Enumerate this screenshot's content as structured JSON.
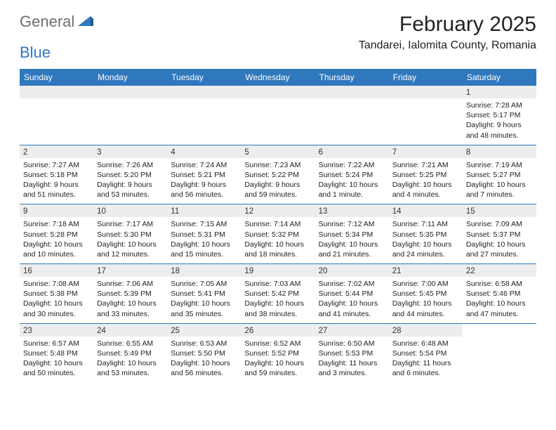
{
  "logo": {
    "word1": "General",
    "word2": "Blue"
  },
  "title": "February 2025",
  "location": "Tandarei, Ialomita County, Romania",
  "colors": {
    "header_bg": "#2f78bd",
    "header_text": "#ffffff",
    "band_bg": "#ededed",
    "divider": "#2f78bd",
    "logo_gray": "#6f6f6f",
    "logo_blue": "#2f78bd",
    "text": "#222222"
  },
  "weekdays": [
    "Sunday",
    "Monday",
    "Tuesday",
    "Wednesday",
    "Thursday",
    "Friday",
    "Saturday"
  ],
  "weeks": [
    [
      {
        "blank": true
      },
      {
        "blank": true
      },
      {
        "blank": true
      },
      {
        "blank": true
      },
      {
        "blank": true
      },
      {
        "blank": true
      },
      {
        "day": "1",
        "sunrise": "Sunrise: 7:28 AM",
        "sunset": "Sunset: 5:17 PM",
        "dl1": "Daylight: 9 hours",
        "dl2": "and 48 minutes."
      }
    ],
    [
      {
        "day": "2",
        "sunrise": "Sunrise: 7:27 AM",
        "sunset": "Sunset: 5:18 PM",
        "dl1": "Daylight: 9 hours",
        "dl2": "and 51 minutes."
      },
      {
        "day": "3",
        "sunrise": "Sunrise: 7:26 AM",
        "sunset": "Sunset: 5:20 PM",
        "dl1": "Daylight: 9 hours",
        "dl2": "and 53 minutes."
      },
      {
        "day": "4",
        "sunrise": "Sunrise: 7:24 AM",
        "sunset": "Sunset: 5:21 PM",
        "dl1": "Daylight: 9 hours",
        "dl2": "and 56 minutes."
      },
      {
        "day": "5",
        "sunrise": "Sunrise: 7:23 AM",
        "sunset": "Sunset: 5:22 PM",
        "dl1": "Daylight: 9 hours",
        "dl2": "and 59 minutes."
      },
      {
        "day": "6",
        "sunrise": "Sunrise: 7:22 AM",
        "sunset": "Sunset: 5:24 PM",
        "dl1": "Daylight: 10 hours",
        "dl2": "and 1 minute."
      },
      {
        "day": "7",
        "sunrise": "Sunrise: 7:21 AM",
        "sunset": "Sunset: 5:25 PM",
        "dl1": "Daylight: 10 hours",
        "dl2": "and 4 minutes."
      },
      {
        "day": "8",
        "sunrise": "Sunrise: 7:19 AM",
        "sunset": "Sunset: 5:27 PM",
        "dl1": "Daylight: 10 hours",
        "dl2": "and 7 minutes."
      }
    ],
    [
      {
        "day": "9",
        "sunrise": "Sunrise: 7:18 AM",
        "sunset": "Sunset: 5:28 PM",
        "dl1": "Daylight: 10 hours",
        "dl2": "and 10 minutes."
      },
      {
        "day": "10",
        "sunrise": "Sunrise: 7:17 AM",
        "sunset": "Sunset: 5:30 PM",
        "dl1": "Daylight: 10 hours",
        "dl2": "and 12 minutes."
      },
      {
        "day": "11",
        "sunrise": "Sunrise: 7:15 AM",
        "sunset": "Sunset: 5:31 PM",
        "dl1": "Daylight: 10 hours",
        "dl2": "and 15 minutes."
      },
      {
        "day": "12",
        "sunrise": "Sunrise: 7:14 AM",
        "sunset": "Sunset: 5:32 PM",
        "dl1": "Daylight: 10 hours",
        "dl2": "and 18 minutes."
      },
      {
        "day": "13",
        "sunrise": "Sunrise: 7:12 AM",
        "sunset": "Sunset: 5:34 PM",
        "dl1": "Daylight: 10 hours",
        "dl2": "and 21 minutes."
      },
      {
        "day": "14",
        "sunrise": "Sunrise: 7:11 AM",
        "sunset": "Sunset: 5:35 PM",
        "dl1": "Daylight: 10 hours",
        "dl2": "and 24 minutes."
      },
      {
        "day": "15",
        "sunrise": "Sunrise: 7:09 AM",
        "sunset": "Sunset: 5:37 PM",
        "dl1": "Daylight: 10 hours",
        "dl2": "and 27 minutes."
      }
    ],
    [
      {
        "day": "16",
        "sunrise": "Sunrise: 7:08 AM",
        "sunset": "Sunset: 5:38 PM",
        "dl1": "Daylight: 10 hours",
        "dl2": "and 30 minutes."
      },
      {
        "day": "17",
        "sunrise": "Sunrise: 7:06 AM",
        "sunset": "Sunset: 5:39 PM",
        "dl1": "Daylight: 10 hours",
        "dl2": "and 33 minutes."
      },
      {
        "day": "18",
        "sunrise": "Sunrise: 7:05 AM",
        "sunset": "Sunset: 5:41 PM",
        "dl1": "Daylight: 10 hours",
        "dl2": "and 35 minutes."
      },
      {
        "day": "19",
        "sunrise": "Sunrise: 7:03 AM",
        "sunset": "Sunset: 5:42 PM",
        "dl1": "Daylight: 10 hours",
        "dl2": "and 38 minutes."
      },
      {
        "day": "20",
        "sunrise": "Sunrise: 7:02 AM",
        "sunset": "Sunset: 5:44 PM",
        "dl1": "Daylight: 10 hours",
        "dl2": "and 41 minutes."
      },
      {
        "day": "21",
        "sunrise": "Sunrise: 7:00 AM",
        "sunset": "Sunset: 5:45 PM",
        "dl1": "Daylight: 10 hours",
        "dl2": "and 44 minutes."
      },
      {
        "day": "22",
        "sunrise": "Sunrise: 6:58 AM",
        "sunset": "Sunset: 5:46 PM",
        "dl1": "Daylight: 10 hours",
        "dl2": "and 47 minutes."
      }
    ],
    [
      {
        "day": "23",
        "sunrise": "Sunrise: 6:57 AM",
        "sunset": "Sunset: 5:48 PM",
        "dl1": "Daylight: 10 hours",
        "dl2": "and 50 minutes."
      },
      {
        "day": "24",
        "sunrise": "Sunrise: 6:55 AM",
        "sunset": "Sunset: 5:49 PM",
        "dl1": "Daylight: 10 hours",
        "dl2": "and 53 minutes."
      },
      {
        "day": "25",
        "sunrise": "Sunrise: 6:53 AM",
        "sunset": "Sunset: 5:50 PM",
        "dl1": "Daylight: 10 hours",
        "dl2": "and 56 minutes."
      },
      {
        "day": "26",
        "sunrise": "Sunrise: 6:52 AM",
        "sunset": "Sunset: 5:52 PM",
        "dl1": "Daylight: 10 hours",
        "dl2": "and 59 minutes."
      },
      {
        "day": "27",
        "sunrise": "Sunrise: 6:50 AM",
        "sunset": "Sunset: 5:53 PM",
        "dl1": "Daylight: 11 hours",
        "dl2": "and 3 minutes."
      },
      {
        "day": "28",
        "sunrise": "Sunrise: 6:48 AM",
        "sunset": "Sunset: 5:54 PM",
        "dl1": "Daylight: 11 hours",
        "dl2": "and 6 minutes."
      },
      {
        "blank": true,
        "noband": true
      }
    ]
  ]
}
